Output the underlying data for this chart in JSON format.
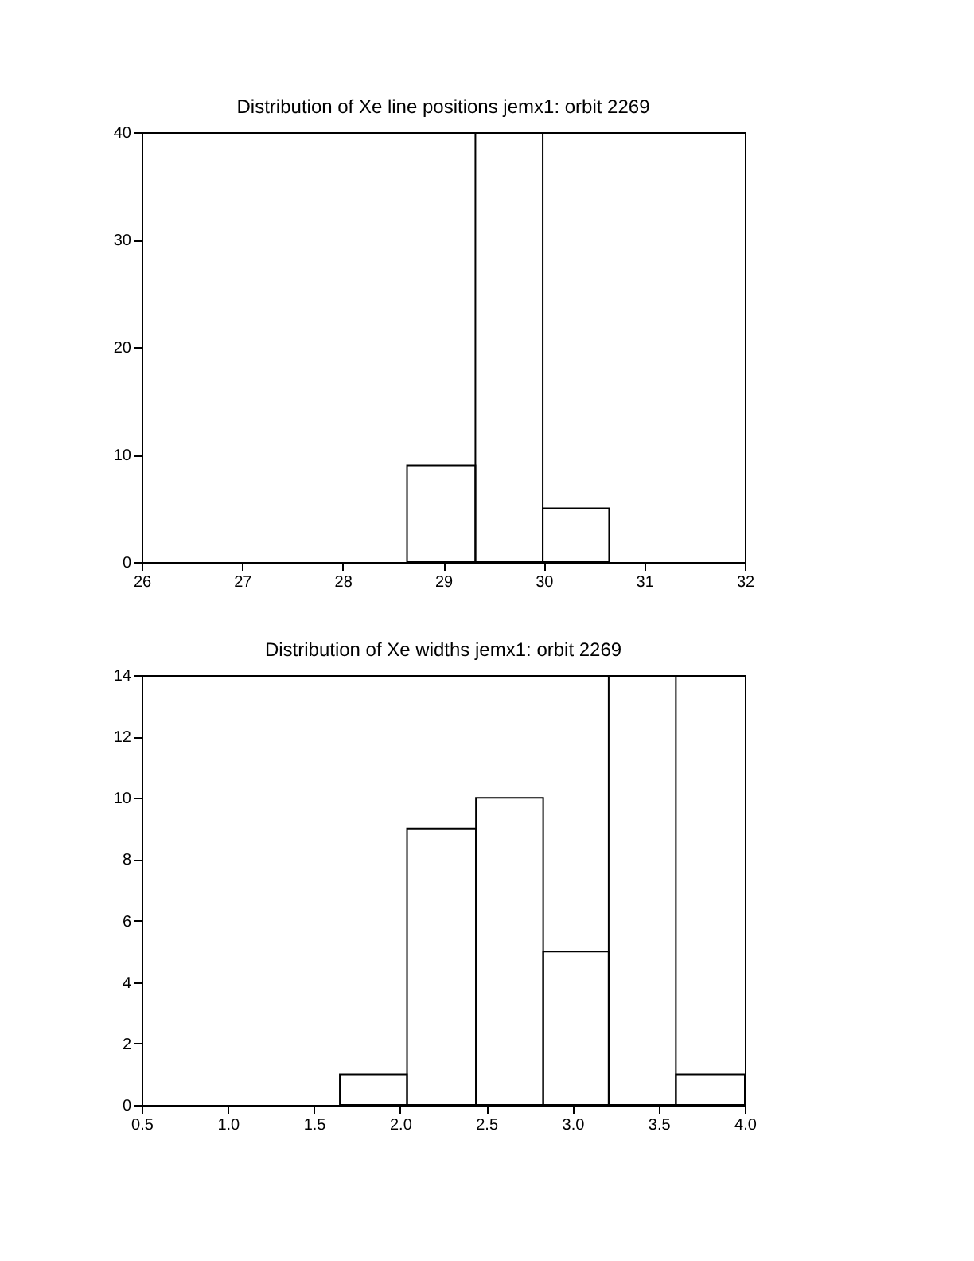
{
  "chart_data": [
    {
      "type": "histogram",
      "title": "Distribution of Xe line positions jemx1: orbit 2269",
      "bins": [
        28.64,
        29.32,
        29.99,
        30.65
      ],
      "values": [
        9,
        40,
        5
      ],
      "color": "#000000",
      "xlim": [
        26,
        32
      ],
      "xticks": [
        26,
        27,
        28,
        29,
        30,
        31,
        32
      ],
      "ylim": [
        0,
        40
      ],
      "yticks": [
        0,
        10,
        20,
        30,
        40
      ],
      "grid": false
    },
    {
      "type": "histogram",
      "title": "Distribution of Xe widths jemx1: orbit 2269",
      "bins": [
        1.65,
        2.04,
        2.44,
        2.83,
        3.21,
        3.6,
        4.0
      ],
      "values": [
        1,
        9,
        10,
        5,
        14,
        1
      ],
      "color": "#000000",
      "xlim": [
        0.5,
        4.0
      ],
      "xticks": [
        0.5,
        {
          "value": 1,
          "label": "1.0"
        },
        1.5,
        {
          "value": 2,
          "label": "2.0"
        },
        2.5,
        {
          "value": 3,
          "label": "3.0"
        },
        3.5,
        {
          "value": 4,
          "label": "4.0"
        }
      ],
      "ylim": [
        0,
        14
      ],
      "yticks": [
        0,
        2,
        4,
        6,
        8,
        10,
        12,
        14
      ],
      "grid": false
    }
  ]
}
